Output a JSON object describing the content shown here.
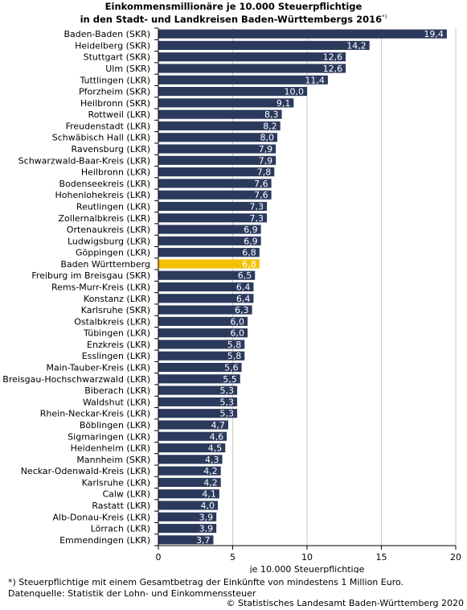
{
  "title_line1": "Einkommensmillionäre je 10.000 Steuerpflichtige",
  "title_line2": "in den Stadt- und Landkreisen Baden-Württembergs 2016",
  "title_marker": "*)",
  "footnote": "*) Steuerpflichtige mit einem Gesamtbetrag der Einkünfte von mindestens 1 Million Euro.",
  "source": "Datenquelle: Statistik der Lohn- und Einkommenssteuer",
  "copyright": "© Statistisches Landesamt Baden-Württemberg 2020",
  "colors": {
    "bar": "#2b3a5c",
    "highlight": "#f5c000",
    "grid": "#c8c8c8"
  },
  "chart_data": {
    "type": "bar",
    "orientation": "horizontal",
    "xlabel": "je 10.000 Steuerpflichtige",
    "xlim": [
      0,
      20
    ],
    "xticks": [
      0,
      5,
      10,
      15,
      20
    ],
    "grid": true,
    "highlight_category": "Baden Württemberg",
    "categories": [
      "Baden-Baden (SKR)",
      "Heidelberg (SKR)",
      "Stuttgart (SKR)",
      "Ulm (SKR)",
      "Tuttlingen (LKR)",
      "Pforzheim (SKR)",
      "Heilbronn (SKR)",
      "Rottweil (LKR)",
      "Freudenstadt (LKR)",
      "Schwäbisch Hall (LKR)",
      "Ravensburg (LKR)",
      "Schwarzwald-Baar-Kreis (LKR)",
      "Heilbronn (LKR)",
      "Bodenseekreis (LKR)",
      "Hohenlohekreis (LKR)",
      "Reutlingen (LKR)",
      "Zollernalbkreis (LKR)",
      "Ortenaukreis (LKR)",
      "Ludwigsburg (LKR)",
      "Göppingen (LKR)",
      "Baden Württemberg",
      "Freiburg im Breisgau (SKR)",
      "Rems-Murr-Kreis (LKR)",
      "Konstanz (LKR)",
      "Karlsruhe (SKR)",
      "Ostalbkreis (LKR)",
      "Tübingen (LKR)",
      "Enzkreis (LKR)",
      "Esslingen (LKR)",
      "Main-Tauber-Kreis (LKR)",
      "Breisgau-Hochschwarzwald (LKR)",
      "Biberach (LKR)",
      "Waldshut (LKR)",
      "Rhein-Neckar-Kreis (LKR)",
      "Böblingen (LKR)",
      "Sigmaringen (LKR)",
      "Heidenheim (LKR)",
      "Mannheim (SKR)",
      "Neckar-Odenwald-Kreis (LKR)",
      "Karlsruhe (LKR)",
      "Calw (LKR)",
      "Rastatt (LKR)",
      "Alb-Donau-Kreis (LKR)",
      "Lörrach (LKR)",
      "Emmendingen (LKR)"
    ],
    "values": [
      19.4,
      14.2,
      12.6,
      12.6,
      11.4,
      10.0,
      9.1,
      8.3,
      8.2,
      8.0,
      7.9,
      7.9,
      7.8,
      7.6,
      7.6,
      7.3,
      7.3,
      6.9,
      6.9,
      6.8,
      6.8,
      6.5,
      6.4,
      6.4,
      6.3,
      6.0,
      6.0,
      5.8,
      5.8,
      5.6,
      5.5,
      5.3,
      5.3,
      5.3,
      4.7,
      4.6,
      4.5,
      4.3,
      4.2,
      4.2,
      4.1,
      4.0,
      3.9,
      3.9,
      3.7
    ],
    "value_labels": [
      "19,4",
      "14,2",
      "12,6",
      "12,6",
      "11,4",
      "10,0",
      "9,1",
      "8,3",
      "8,2",
      "8,0",
      "7,9",
      "7,9",
      "7,8",
      "7,6",
      "7,6",
      "7,3",
      "7,3",
      "6,9",
      "6,9",
      "6,8",
      "6,8",
      "6,5",
      "6,4",
      "6,4",
      "6,3",
      "6,0",
      "6,0",
      "5,8",
      "5,8",
      "5,6",
      "5,5",
      "5,3",
      "5,3",
      "5,3",
      "4,7",
      "4,6",
      "4,5",
      "4,3",
      "4,2",
      "4,2",
      "4,1",
      "4,0",
      "3,9",
      "3,9",
      "3,7"
    ]
  }
}
